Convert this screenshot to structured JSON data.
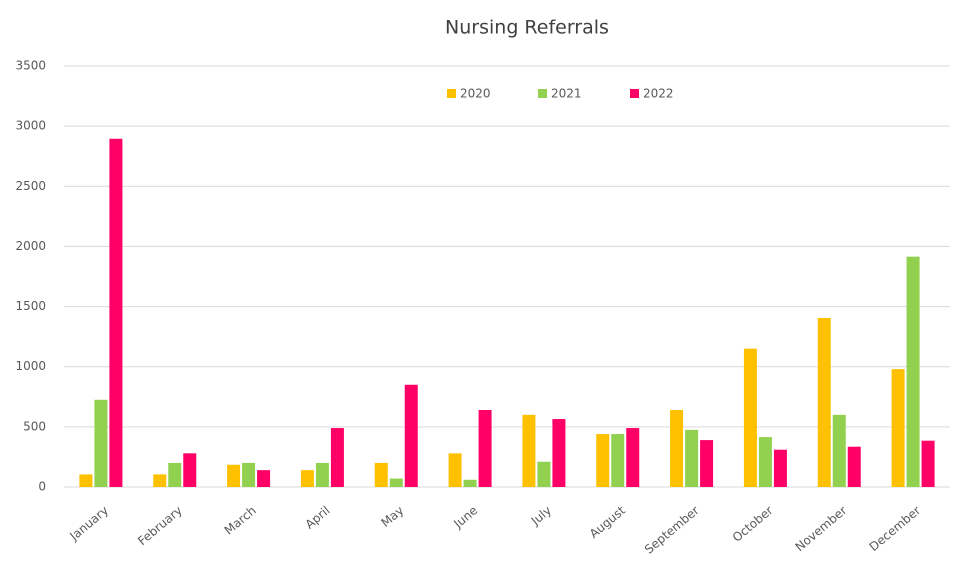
{
  "chart_data": {
    "type": "bar",
    "title": "Nursing Referrals",
    "categories": [
      "January",
      "February",
      "March",
      "April",
      "May",
      "June",
      "July",
      "August",
      "September",
      "October",
      "November",
      "December"
    ],
    "series": [
      {
        "name": "2020",
        "color": "#ffc000",
        "values": [
          105,
          105,
          185,
          140,
          200,
          280,
          600,
          440,
          640,
          1150,
          1405,
          980
        ]
      },
      {
        "name": "2021",
        "color": "#92d050",
        "values": [
          725,
          200,
          200,
          200,
          70,
          60,
          210,
          440,
          475,
          415,
          600,
          1915
        ]
      },
      {
        "name": "2022",
        "color": "#ff0066",
        "values": [
          2895,
          280,
          140,
          490,
          850,
          640,
          565,
          490,
          390,
          310,
          335,
          385
        ]
      }
    ],
    "ylim": [
      0,
      3500
    ],
    "yticks": [
      0,
      500,
      1000,
      1500,
      2000,
      2500,
      3000,
      3500
    ],
    "grid": true,
    "legend": "top"
  }
}
